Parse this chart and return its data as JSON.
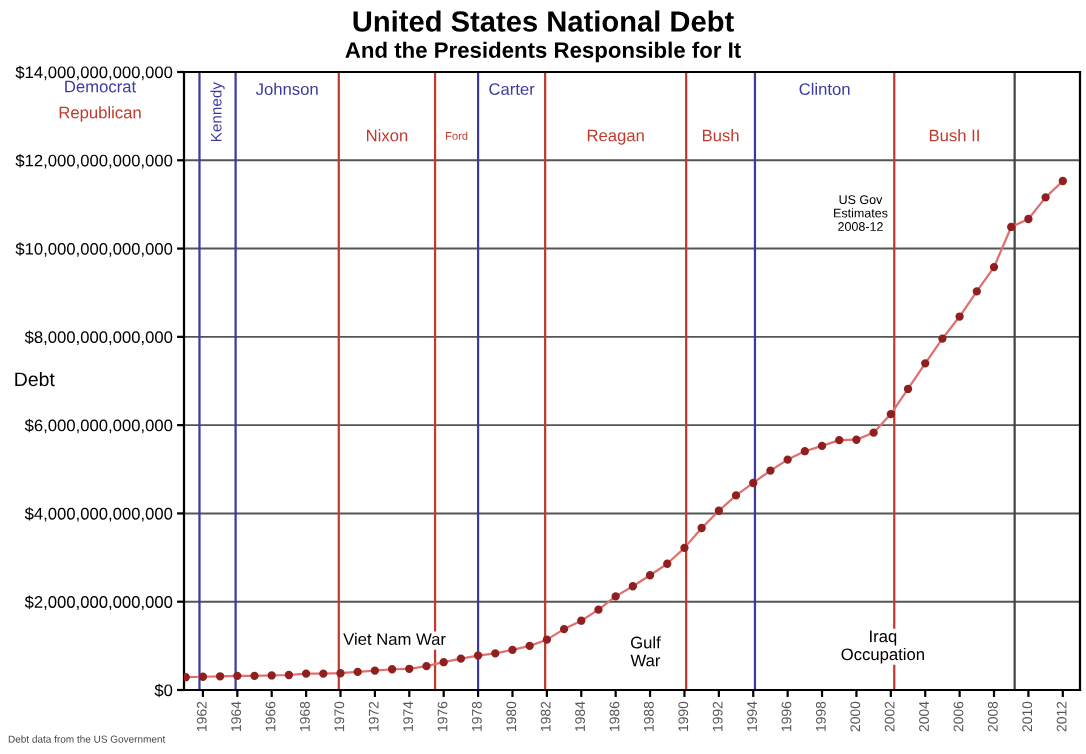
{
  "chart_data": {
    "type": "line",
    "title": "United States National Debt",
    "subtitle": "And the Presidents Responsible for It",
    "ylabel": "Debt",
    "x": [
      1961,
      1962,
      1963,
      1964,
      1965,
      1966,
      1967,
      1968,
      1969,
      1970,
      1971,
      1972,
      1973,
      1974,
      1975,
      1976,
      1977,
      1978,
      1979,
      1980,
      1981,
      1982,
      1983,
      1984,
      1985,
      1986,
      1987,
      1988,
      1989,
      1990,
      1991,
      1992,
      1993,
      1994,
      1995,
      1996,
      1997,
      1998,
      1999,
      2000,
      2001,
      2002,
      2003,
      2004,
      2005,
      2006,
      2007,
      2008,
      2009,
      2010,
      2011,
      2012
    ],
    "series": [
      {
        "color": "#e07070",
        "values": [
          290000000000,
          300000000000,
          310000000000,
          320000000000,
          320000000000,
          330000000000,
          340000000000,
          370000000000,
          370000000000,
          380000000000,
          410000000000,
          440000000000,
          470000000000,
          480000000000,
          540000000000,
          630000000000,
          710000000000,
          780000000000,
          830000000000,
          910000000000,
          1000000000000,
          1140000000000,
          1380000000000,
          1570000000000,
          1820000000000,
          2120000000000,
          2350000000000,
          2600000000000,
          2860000000000,
          3220000000000,
          3670000000000,
          4060000000000,
          4410000000000,
          4690000000000,
          4970000000000,
          5220000000000,
          5410000000000,
          5530000000000,
          5660000000000,
          5670000000000,
          5830000000000,
          6250000000000,
          6820000000000,
          7400000000000,
          7960000000000,
          8460000000000,
          9030000000000,
          9580000000000,
          10490000000000,
          10670000000000,
          11160000000000,
          11530000000000
        ]
      }
    ],
    "marker": "circle",
    "line_style": "solid",
    "grid": "y",
    "xlim": [
      1960.9,
      2013.0
    ],
    "xticks": [
      1962,
      1964,
      1966,
      1968,
      1970,
      1972,
      1974,
      1976,
      1978,
      1980,
      1982,
      1984,
      1986,
      1988,
      1990,
      1992,
      1994,
      1996,
      1998,
      2000,
      2002,
      2004,
      2006,
      2008,
      2010,
      2012
    ],
    "ylim": [
      0,
      14000000000000
    ],
    "yticks": [
      {
        "value": 0,
        "label": "$0"
      },
      {
        "value": 2000000000000,
        "label": "$2,000,000,000,000"
      },
      {
        "value": 4000000000000,
        "label": "$4,000,000,000,000"
      },
      {
        "value": 6000000000000,
        "label": "$6,000,000,000,000"
      },
      {
        "value": 8000000000000,
        "label": "$8,000,000,000,000"
      },
      {
        "value": 10000000000000,
        "label": "$10,000,000,000,000"
      },
      {
        "value": 12000000000000,
        "label": "$12,000,000,000,000"
      },
      {
        "value": 14000000000000,
        "label": "$14,000,000,000,000"
      }
    ],
    "ref_lines": [
      {
        "axis": "x",
        "value": 1961.8,
        "label": "Kennedy",
        "color": "#3a3aa0"
      },
      {
        "axis": "x",
        "value": 1963.9,
        "label": "Johnson",
        "color": "#3a3aa0"
      },
      {
        "axis": "x",
        "value": 1969.9,
        "label": "Nixon",
        "color": "#c0392b"
      },
      {
        "axis": "x",
        "value": 1975.5,
        "label": "Ford",
        "color": "#c0392b"
      },
      {
        "axis": "x",
        "value": 1978.0,
        "label": "Carter",
        "color": "#3a3aa0"
      },
      {
        "axis": "x",
        "value": 1981.9,
        "label": "Reagan",
        "color": "#c0392b"
      },
      {
        "axis": "x",
        "value": 1990.1,
        "label": "Bush",
        "color": "#c0392b"
      },
      {
        "axis": "x",
        "value": 1994.1,
        "label": "Clinton",
        "color": "#3a3aa0"
      },
      {
        "axis": "x",
        "value": 2002.2,
        "label": "Bush II",
        "color": "#c0392b"
      },
      {
        "axis": "x",
        "value": 2009.2,
        "color": "#444444"
      }
    ],
    "annotations": [
      "Democrat",
      "Republican",
      "Debt data from the US Government",
      "Viet Nam War",
      "Gulf\nWar",
      "Iraq\nOccupation",
      "US Gov\nEstimates\n2008-12"
    ]
  }
}
